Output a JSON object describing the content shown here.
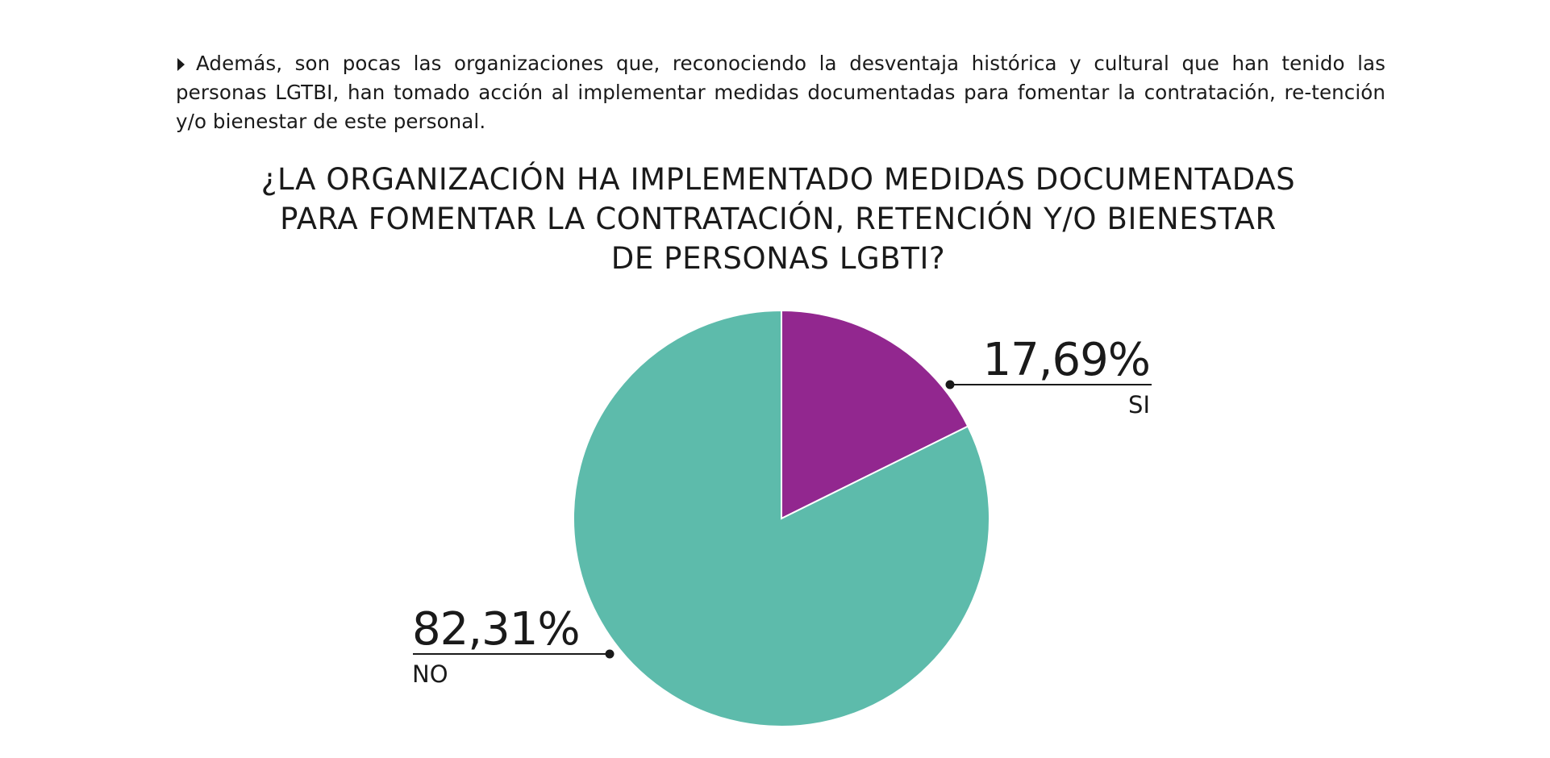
{
  "intro": {
    "text": "Además, son pocas las organizaciones que, reconociendo la desventaja histórica y cultural que han tenido las personas LGTBI, han tomado acción al implementar medidas documentadas para fomentar la contratación, re-tención y/o bienestar de este personal."
  },
  "chart_data": {
    "type": "pie",
    "title_lines": [
      "¿LA ORGANIZACIÓN HA IMPLEMENTADO MEDIDAS DOCUMENTADAS",
      "PARA FOMENTAR LA CONTRATACIÓN, RETENCIÓN Y/O BIENESTAR",
      "DE PERSONAS LGBTI?"
    ],
    "slices": [
      {
        "label": "SI",
        "value": 17.69,
        "display": "17,69%",
        "color": "#92278f"
      },
      {
        "label": "NO",
        "value": 82.31,
        "display": "82,31%",
        "color": "#5dbbab"
      }
    ],
    "start_angle": "12 o'clock",
    "direction": "clockwise"
  }
}
